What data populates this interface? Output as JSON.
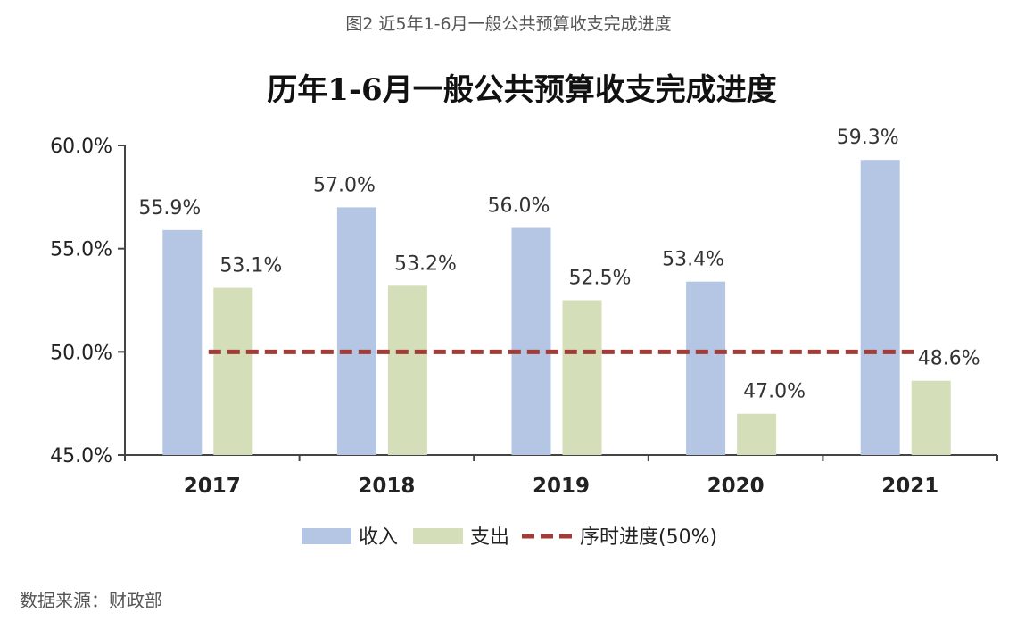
{
  "figure_caption": "图2 近5年1-6月一般公共预算收支完成进度",
  "source_note": "数据来源：财政部",
  "colors": {
    "income": "#b4c6e4",
    "expenditure": "#d4dfba",
    "progress_line": "#a33b36",
    "axis": "#444444"
  },
  "chart_data": {
    "type": "bar",
    "title": "历年1-6月一般公共预算收支完成进度",
    "categories": [
      "2017",
      "2018",
      "2019",
      "2020",
      "2021"
    ],
    "series": [
      {
        "name": "收入",
        "values": [
          55.9,
          57.0,
          56.0,
          53.4,
          59.3
        ],
        "labels": [
          "55.9%",
          "57.0%",
          "56.0%",
          "53.4%",
          "59.3%"
        ]
      },
      {
        "name": "支出",
        "values": [
          53.1,
          53.2,
          52.5,
          47.0,
          48.6
        ],
        "labels": [
          "53.1%",
          "53.2%",
          "52.5%",
          "47.0%",
          "48.6%"
        ]
      }
    ],
    "reference_line": {
      "name": "序时进度(50%)",
      "value": 50.0
    },
    "ylim": [
      45,
      60
    ],
    "yticks": [
      45,
      50,
      55,
      60
    ],
    "ytick_labels": [
      "45.0%",
      "50.0%",
      "55.0%",
      "60.0%"
    ],
    "grid": false,
    "legend_position": "bottom"
  }
}
